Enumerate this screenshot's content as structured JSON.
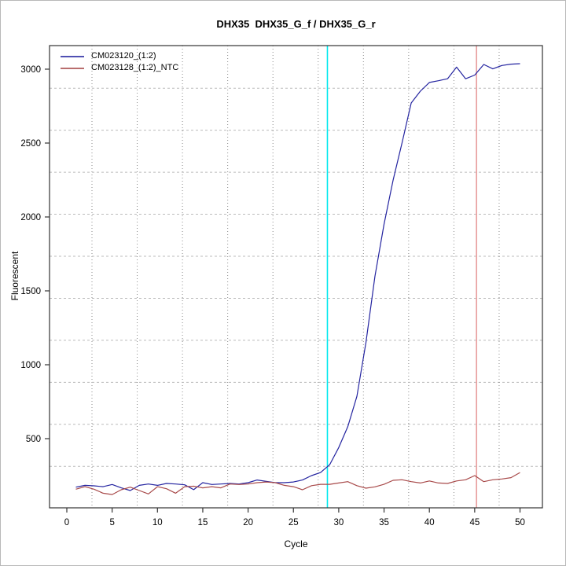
{
  "figure": {
    "title": "DHX35  DHX35_G_f / DHX35_G_r",
    "background": "#ffffff"
  },
  "chart_data": {
    "type": "line",
    "title": "DHX35  DHX35_G_f / DHX35_G_r",
    "xlabel": "Cycle",
    "ylabel": "Fluorescent",
    "xlim": [
      -2,
      52.5
    ],
    "ylim": [
      30,
      3160
    ],
    "xticks": [
      0,
      5,
      10,
      15,
      20,
      25,
      30,
      35,
      40,
      45,
      50
    ],
    "yticks": [
      500,
      1000,
      1500,
      2000,
      2500,
      3000
    ],
    "grid": "dotted gray gridlines offset from ticks (11 equal divisions)",
    "legend_position": "top-left inside panel",
    "x": [
      1,
      2,
      3,
      4,
      5,
      6,
      7,
      8,
      9,
      10,
      11,
      12,
      13,
      14,
      15,
      16,
      17,
      18,
      19,
      20,
      21,
      22,
      23,
      24,
      25,
      26,
      27,
      28,
      29,
      30,
      31,
      32,
      33,
      34,
      35,
      36,
      37,
      38,
      39,
      40,
      41,
      42,
      43,
      44,
      45,
      46,
      47,
      48,
      49,
      50
    ],
    "series": [
      {
        "name": "CM023120_(1:2)",
        "color": "#2424A0",
        "values": [
          172,
          184,
          181,
          175,
          190,
          167,
          149,
          184,
          193,
          184,
          197,
          193,
          188,
          155,
          202,
          190,
          193,
          197,
          193,
          202,
          220,
          211,
          202,
          202,
          207,
          220,
          250,
          271,
          324,
          440,
          581,
          786,
          1150,
          1600,
          1950,
          2250,
          2505,
          2771,
          2851,
          2910,
          2922,
          2935,
          3014,
          2935,
          2960,
          3032,
          3002,
          3025,
          3034,
          3037
        ]
      },
      {
        "name": "CM023128_(1:2)_NTC",
        "color": "#A84A4A",
        "values": [
          158,
          175,
          158,
          131,
          122,
          154,
          172,
          149,
          126,
          175,
          161,
          131,
          175,
          178,
          167,
          175,
          167,
          193,
          190,
          193,
          202,
          207,
          202,
          184,
          175,
          154,
          182,
          191,
          191,
          200,
          209,
          182,
          165,
          174,
          191,
          218,
          222,
          209,
          200,
          214,
          200,
          197,
          214,
          222,
          250,
          209,
          222,
          227,
          236,
          271
        ]
      }
    ],
    "vlines": [
      {
        "name": "threshold-cycle-line",
        "x": 28.75,
        "color": "#00E8EE"
      },
      {
        "name": "cycle-45-marker-line",
        "x": 45.2,
        "color": "#E89C9C"
      }
    ],
    "axis_color": "#333333",
    "vgrid_color": "#8a8a8a",
    "hgrid_color": "#bbbbbb"
  }
}
